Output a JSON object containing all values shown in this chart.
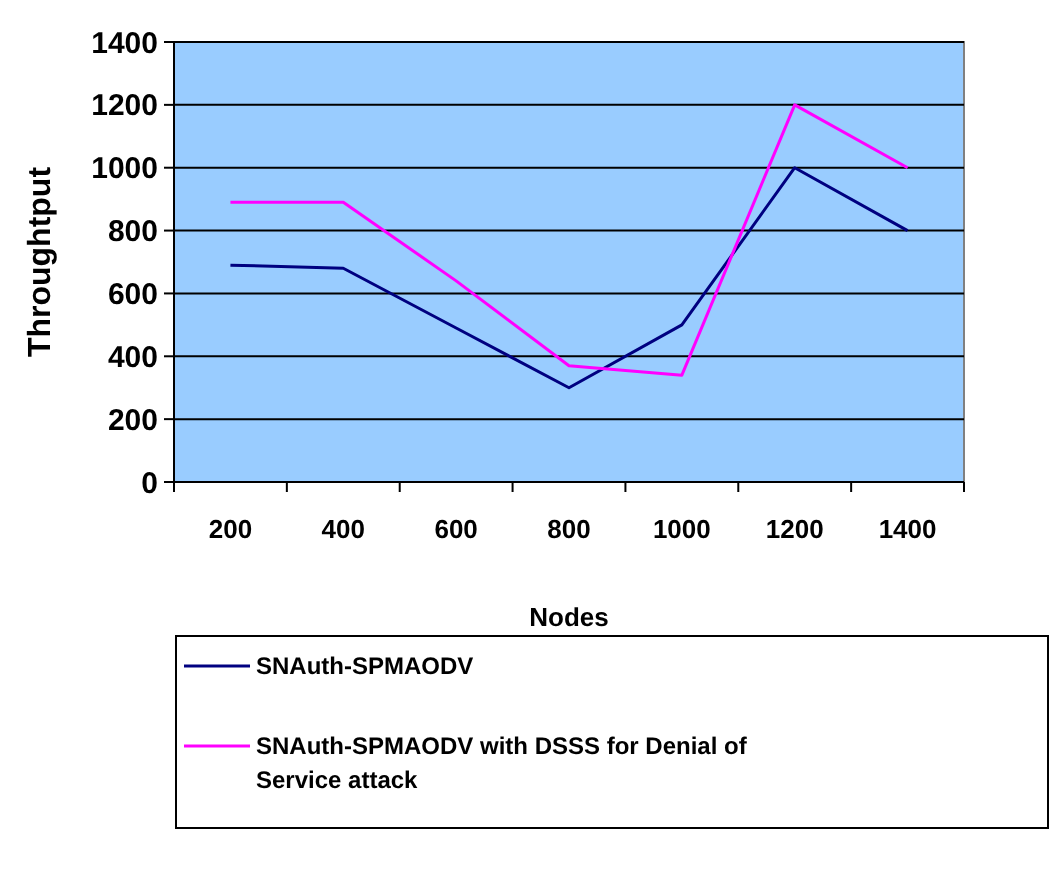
{
  "chart_data": {
    "type": "line",
    "xlabel": "Nodes",
    "ylabel": "Throughtput",
    "categories": [
      "200",
      "400",
      "600",
      "800",
      "1000",
      "1200",
      "1400"
    ],
    "series": [
      {
        "name": "SNAuth-SPMAODV",
        "color": "#000080",
        "values": [
          690,
          680,
          490,
          300,
          500,
          1000,
          800
        ]
      },
      {
        "name": "SNAuth-SPMAODV  with DSSS for Denial of Service attack",
        "color": "#ff00ff",
        "values": [
          890,
          890,
          640,
          370,
          340,
          1200,
          1000
        ]
      }
    ],
    "ylim": [
      0,
      1400
    ],
    "yticks": [
      0,
      200,
      400,
      600,
      800,
      1000,
      1200,
      1400
    ],
    "grid": "y",
    "legend": "bottom",
    "marker": "none",
    "line_style": "solid"
  }
}
